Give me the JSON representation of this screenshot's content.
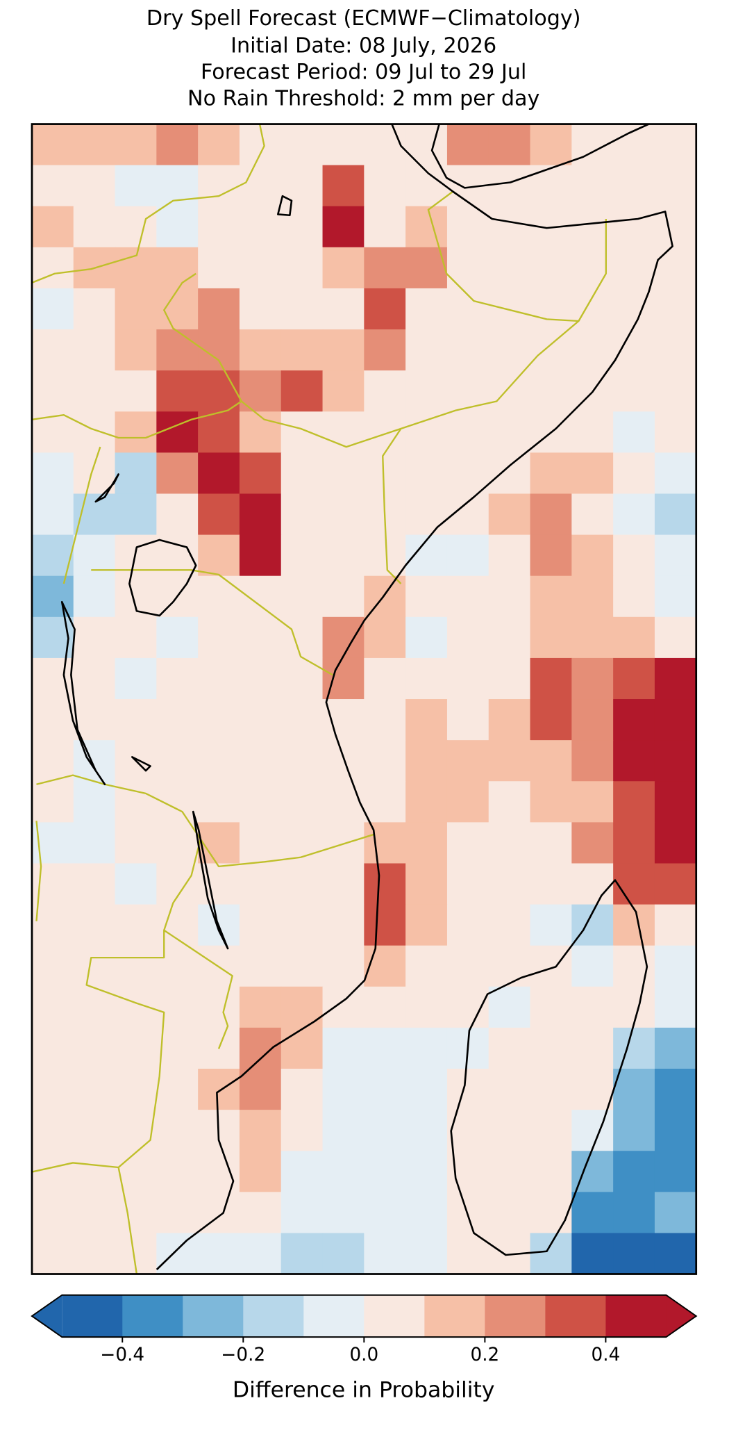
{
  "chart_data": {
    "type": "heatmap",
    "title": [
      "Dry Spell Forecast (ECMWF−Climatology)",
      "Initial Date: 08 July, 2026",
      "Forecast Period: 09 Jul to 29 Jul",
      "No Rain Threshold: 2 mm per day"
    ],
    "values": [
      [
        0.15,
        0.15,
        0.15,
        0.25,
        0.15,
        0.05,
        0.05,
        0.05,
        0.05,
        0.05,
        0.25,
        0.25,
        0.15,
        0.05,
        0.05,
        0.05
      ],
      [
        0.05,
        0.05,
        -0.05,
        -0.05,
        0.05,
        0.05,
        0.05,
        0.35,
        0.05,
        0.05,
        0.05,
        0.05,
        0.05,
        0.05,
        0.05,
        0.05
      ],
      [
        0.15,
        0.05,
        0.05,
        -0.05,
        0.05,
        0.05,
        0.05,
        0.45,
        0.05,
        0.15,
        0.05,
        0.05,
        0.05,
        0.05,
        0.05,
        0.05
      ],
      [
        0.05,
        0.15,
        0.15,
        0.15,
        0.05,
        0.05,
        0.05,
        0.15,
        0.25,
        0.25,
        0.05,
        0.05,
        0.05,
        0.05,
        0.05,
        0.05
      ],
      [
        -0.05,
        0.05,
        0.15,
        0.15,
        0.25,
        0.05,
        0.05,
        0.05,
        0.35,
        0.05,
        0.05,
        0.05,
        0.05,
        0.05,
        0.05,
        0.05
      ],
      [
        0.05,
        0.05,
        0.15,
        0.25,
        0.25,
        0.15,
        0.15,
        0.15,
        0.25,
        0.05,
        0.05,
        0.05,
        0.05,
        0.05,
        0.05,
        0.05
      ],
      [
        0.05,
        0.05,
        0.05,
        0.35,
        0.35,
        0.25,
        0.35,
        0.15,
        0.05,
        0.05,
        0.05,
        0.05,
        0.05,
        0.05,
        0.05,
        0.05
      ],
      [
        0.05,
        0.05,
        0.15,
        0.45,
        0.35,
        0.15,
        0.05,
        0.05,
        0.05,
        0.05,
        0.05,
        0.05,
        0.05,
        0.05,
        -0.05,
        0.05
      ],
      [
        -0.05,
        0.05,
        -0.15,
        0.25,
        0.45,
        0.35,
        0.05,
        0.05,
        0.05,
        0.05,
        0.05,
        0.05,
        0.15,
        0.15,
        0.05,
        -0.05
      ],
      [
        -0.05,
        -0.15,
        -0.15,
        0.05,
        0.35,
        0.45,
        0.05,
        0.05,
        0.05,
        0.05,
        0.05,
        0.15,
        0.25,
        0.05,
        -0.05,
        -0.15
      ],
      [
        -0.15,
        -0.05,
        0.05,
        0.05,
        0.15,
        0.45,
        0.05,
        0.05,
        0.05,
        -0.05,
        -0.05,
        0.05,
        0.25,
        0.15,
        0.05,
        -0.05
      ],
      [
        -0.25,
        -0.05,
        0.05,
        0.05,
        0.05,
        0.05,
        0.05,
        0.05,
        0.15,
        0.05,
        0.05,
        0.05,
        0.15,
        0.15,
        0.05,
        -0.05
      ],
      [
        -0.15,
        0.05,
        0.05,
        -0.05,
        0.05,
        0.05,
        0.05,
        0.25,
        0.15,
        -0.05,
        0.05,
        0.05,
        0.15,
        0.15,
        0.15,
        0.05
      ],
      [
        0.05,
        0.05,
        -0.05,
        0.05,
        0.05,
        0.05,
        0.05,
        0.25,
        0.05,
        0.05,
        0.05,
        0.05,
        0.35,
        0.25,
        0.35,
        0.45
      ],
      [
        0.05,
        0.05,
        0.05,
        0.05,
        0.05,
        0.05,
        0.05,
        0.05,
        0.05,
        0.15,
        0.05,
        0.15,
        0.35,
        0.25,
        0.45,
        0.45
      ],
      [
        0.05,
        -0.05,
        0.05,
        0.05,
        0.05,
        0.05,
        0.05,
        0.05,
        0.05,
        0.15,
        0.15,
        0.15,
        0.15,
        0.25,
        0.45,
        0.45
      ],
      [
        0.05,
        -0.05,
        0.05,
        0.05,
        0.05,
        0.05,
        0.05,
        0.05,
        0.05,
        0.15,
        0.15,
        0.05,
        0.15,
        0.15,
        0.35,
        0.45
      ],
      [
        -0.05,
        -0.05,
        0.05,
        0.05,
        0.15,
        0.05,
        0.05,
        0.05,
        0.15,
        0.15,
        0.05,
        0.05,
        0.05,
        0.25,
        0.35,
        0.45
      ],
      [
        0.05,
        0.05,
        -0.05,
        0.05,
        0.05,
        0.05,
        0.05,
        0.05,
        0.35,
        0.15,
        0.05,
        0.05,
        0.05,
        0.05,
        0.35,
        0.35
      ],
      [
        0.05,
        0.05,
        0.05,
        0.05,
        -0.05,
        0.05,
        0.05,
        0.05,
        0.35,
        0.15,
        0.05,
        0.05,
        -0.05,
        -0.15,
        0.15,
        0.05
      ],
      [
        0.05,
        0.05,
        0.05,
        0.05,
        0.05,
        0.05,
        0.05,
        0.05,
        0.15,
        0.05,
        0.05,
        0.05,
        0.05,
        -0.05,
        0.05,
        -0.05
      ],
      [
        0.05,
        0.05,
        0.05,
        0.05,
        0.05,
        0.15,
        0.15,
        0.05,
        0.05,
        0.05,
        0.05,
        -0.05,
        0.05,
        0.05,
        0.05,
        -0.05
      ],
      [
        0.05,
        0.05,
        0.05,
        0.05,
        0.05,
        0.25,
        0.15,
        -0.05,
        -0.05,
        -0.05,
        -0.05,
        0.05,
        0.05,
        0.05,
        -0.15,
        -0.25
      ],
      [
        0.05,
        0.05,
        0.05,
        0.05,
        0.15,
        0.25,
        0.05,
        -0.05,
        -0.05,
        -0.05,
        0.05,
        0.05,
        0.05,
        0.05,
        -0.25,
        -0.35
      ],
      [
        0.05,
        0.05,
        0.05,
        0.05,
        0.05,
        0.15,
        0.05,
        -0.05,
        -0.05,
        -0.05,
        0.05,
        0.05,
        0.05,
        -0.05,
        -0.25,
        -0.35
      ],
      [
        0.05,
        0.05,
        0.05,
        0.05,
        0.05,
        0.15,
        -0.05,
        -0.05,
        -0.05,
        -0.05,
        0.05,
        0.05,
        0.05,
        -0.25,
        -0.35,
        -0.35
      ],
      [
        0.05,
        0.05,
        0.05,
        0.05,
        0.05,
        0.05,
        -0.05,
        -0.05,
        -0.05,
        -0.05,
        0.05,
        0.05,
        0.05,
        -0.35,
        -0.35,
        -0.25
      ],
      [
        0.05,
        0.05,
        0.05,
        -0.05,
        -0.05,
        -0.05,
        -0.15,
        -0.15,
        -0.05,
        -0.05,
        0.05,
        0.05,
        -0.15,
        -0.45,
        -0.45,
        -0.45
      ]
    ],
    "levels": [
      -0.5,
      -0.4,
      -0.3,
      -0.2,
      -0.1,
      0,
      0.1,
      0.2,
      0.3,
      0.4,
      0.5
    ],
    "colors": [
      "#2166ac",
      "#3f8fc5",
      "#7eb8da",
      "#b7d7ea",
      "#e5eef4",
      "#f9e8e0",
      "#f6c0a7",
      "#e58e77",
      "#cf5246",
      "#b2182b"
    ],
    "colorbar": {
      "label": "Difference in Probability",
      "ticks": [
        {
          "value": -0.4,
          "label": "−0.4"
        },
        {
          "value": -0.2,
          "label": "−0.2"
        },
        {
          "value": 0,
          "label": "0.0"
        },
        0.2,
        0.4
      ]
    }
  }
}
